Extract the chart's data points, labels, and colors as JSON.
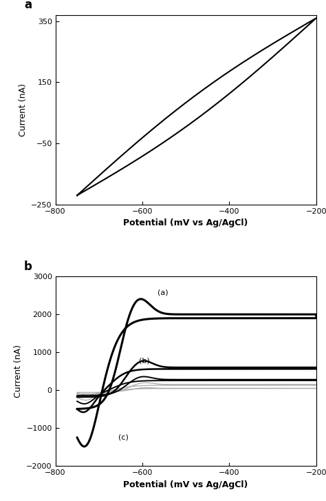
{
  "panel_a": {
    "label": "a",
    "xlim": [
      -800,
      -200
    ],
    "ylim": [
      -250,
      370
    ],
    "xticks": [
      -800,
      -600,
      -400,
      -200
    ],
    "yticks": [
      -250,
      -50,
      150,
      350
    ],
    "xlabel": "Potential (mV vs Ag/AgCl)",
    "ylabel": "Current (nA)",
    "curve_color": "#000000",
    "curve_lw": 1.5
  },
  "panel_b": {
    "label": "b",
    "xlim": [
      -800,
      -200
    ],
    "ylim": [
      -2000,
      3000
    ],
    "xticks": [
      -800,
      -600,
      -400,
      -200
    ],
    "yticks": [
      -2000,
      -1000,
      0,
      1000,
      2000,
      3000
    ],
    "xlabel": "Potential (mV vs Ag/AgCl)",
    "ylabel": "Current (nA)",
    "curve_color_bold": "#000000",
    "curve_color_gray": "#aaaaaa",
    "annotation_a": "(a)",
    "annotation_b": "(b)",
    "annotation_c": "(c)"
  }
}
